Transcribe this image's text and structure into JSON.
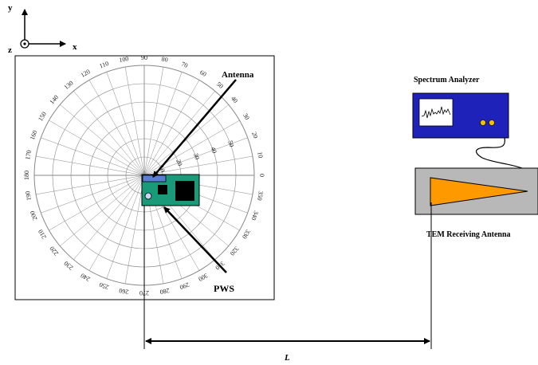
{
  "axes": {
    "x_label": "x",
    "y_label": "y",
    "z_label": "z"
  },
  "polar_grid": {
    "angle_labels": [
      "0",
      "10",
      "20",
      "30",
      "40",
      "50",
      "60",
      "70",
      "80",
      "90",
      "100",
      "110",
      "120",
      "130",
      "140",
      "150",
      "160",
      "170",
      "180",
      "190",
      "200",
      "210",
      "220",
      "230",
      "240",
      "250",
      "260",
      "270",
      "280",
      "290",
      "300",
      "310",
      "320",
      "330",
      "340",
      "350"
    ],
    "radial_labels": [
      "10",
      "20",
      "30",
      "40",
      "50"
    ]
  },
  "labels": {
    "antenna": "Antenna",
    "pws": "PWS",
    "spectrum_analyzer": "Spectrum Analyzer",
    "tem_antenna": "TEM Receiving Antenna",
    "distance": "L"
  },
  "colors": {
    "pcb": "#1a9a78",
    "pcb_chip": "#5c7fd6",
    "analyzer_body": "#1f22b8",
    "analyzer_knob": "#f2c200",
    "tem_box": "#b8b8b8",
    "tem_horn": "#ff9900"
  }
}
